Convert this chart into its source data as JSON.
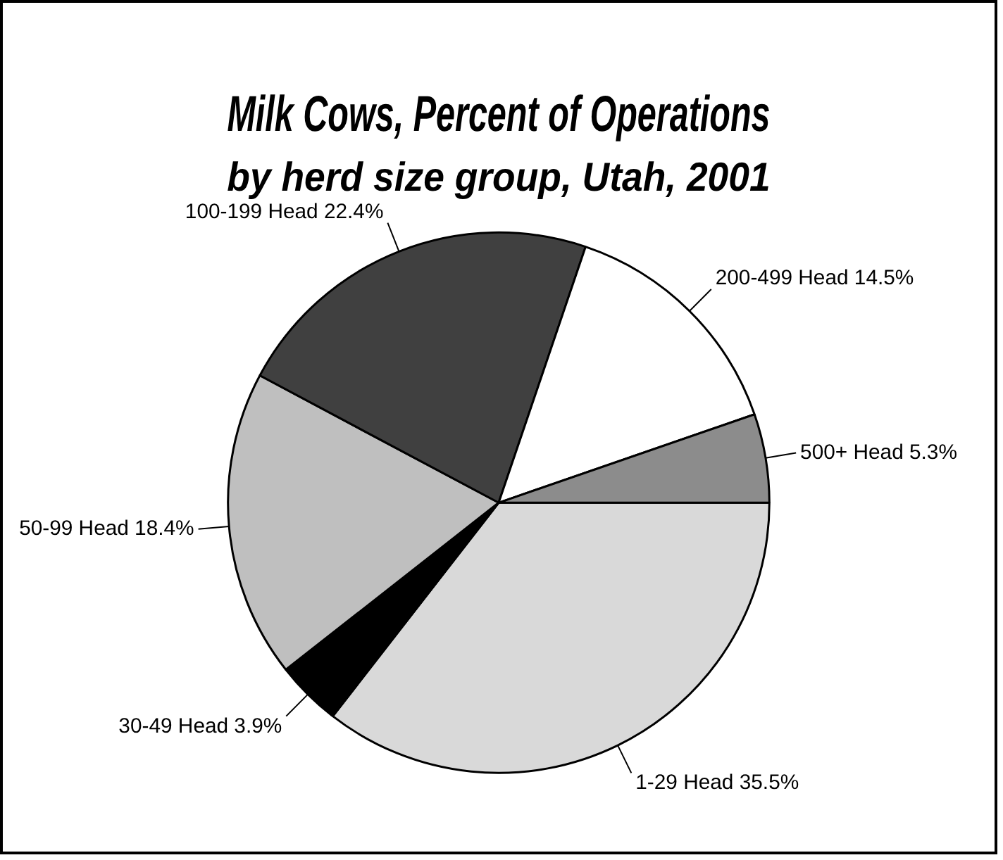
{
  "chart_data": {
    "type": "pie",
    "title": "Milk Cows, Percent of Operations",
    "subtitle": "by herd size group, Utah, 2001",
    "categories": [
      "1-29 Head",
      "30-49 Head",
      "50-99 Head",
      "100-199 Head",
      "200-499 Head",
      "500+ Head"
    ],
    "values": [
      35.5,
      3.9,
      18.4,
      22.4,
      14.5,
      5.3
    ],
    "value_labels": [
      "35.5%",
      "3.9%",
      "18.4%",
      "22.4%",
      "14.5%",
      "5.3%"
    ],
    "colors": [
      "#d9d9d9",
      "#000000",
      "#bfbfbf",
      "#404040",
      "#ffffff",
      "#8c8c8c"
    ],
    "legend": false
  }
}
